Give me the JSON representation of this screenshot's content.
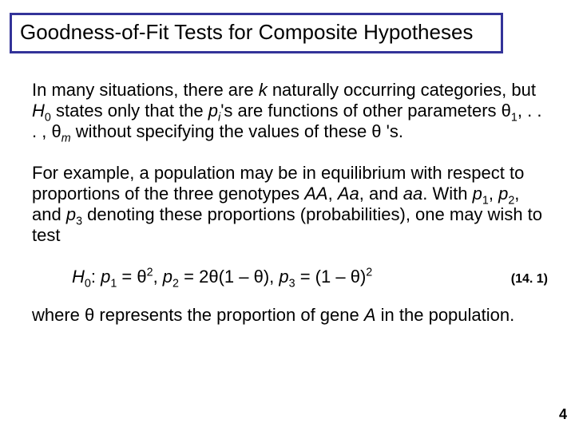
{
  "title": "Goodness-of-Fit Tests for Composite Hypotheses",
  "p1a": "In many situations, there are ",
  "p1b": " naturally occurring categories, but ",
  "p1c": " states only that the ",
  "p1d": "'s are functions of other parameters ",
  "p1e": ", . . . , ",
  "p1f": " without specifying the values of these ",
  "p1g": " 's.",
  "k": "k",
  "H": "H",
  "zero": "0",
  "p": "p",
  "i": "i",
  "theta": "θ",
  "one": "1",
  "m": "m",
  "p2a": "For example, a population may be in equilibrium with respect to proportions of the three genotypes ",
  "AA": "AA",
  "comma": ", ",
  "Aa": "Aa",
  "and": ", and ",
  "aa": "aa",
  "p2b": ". With ",
  "two": "2",
  "three": "3",
  "p2c": " denoting these proportions (probabilities), one may wish to test",
  "eqH": "H",
  "eqColon": ": ",
  "eq_eq": " = ",
  "eq_comma": ", ",
  "eq_2theta": " = 2",
  "eq_lpar": "(1 – ",
  "eq_rpar": "), ",
  "eq_lpar2": " = (1 – ",
  "eq_rpar2": ")",
  "eqnum": "(14. 1)",
  "p3a": "where ",
  "p3b": " represents the proportion of gene ",
  "A": "A",
  "p3c": " in the population.",
  "pagenum": "4",
  "colors": {
    "title_border": "#333399",
    "text": "#000000",
    "background": "#ffffff"
  },
  "title_fontsize": 26,
  "body_fontsize": 22
}
